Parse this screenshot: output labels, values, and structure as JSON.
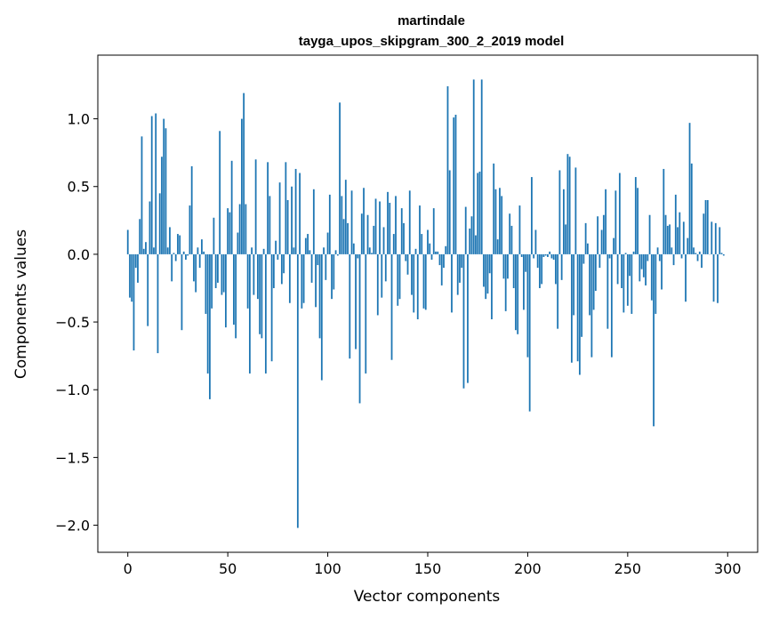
{
  "chart_data": {
    "type": "bar",
    "title": "martindale",
    "subtitle": "tayga_upos_skipgram_300_2_2019 model",
    "xlabel": "Vector components",
    "ylabel": "Components values",
    "xlim": [
      -15,
      315
    ],
    "ylim": [
      -2.2,
      1.47
    ],
    "xticks": [
      0,
      50,
      100,
      150,
      200,
      250,
      300
    ],
    "yticks": [
      -2.0,
      -1.5,
      -1.0,
      -0.5,
      0.0,
      0.5,
      1.0
    ],
    "xtick_labels": [
      "0",
      "50",
      "100",
      "150",
      "200",
      "250",
      "300"
    ],
    "ytick_labels": [
      "−2.0",
      "−1.5",
      "−1.0",
      "−0.5",
      "0.0",
      "0.5",
      "1.0"
    ],
    "grid": false,
    "bar_color": "#1f77b4",
    "x_start": 0,
    "values": [
      0.18,
      -0.32,
      -0.35,
      -0.71,
      -0.1,
      -0.21,
      0.26,
      0.87,
      0.04,
      0.09,
      -0.53,
      0.39,
      1.02,
      0.05,
      1.04,
      -0.73,
      0.45,
      0.72,
      1.0,
      0.93,
      0.05,
      0.2,
      -0.2,
      0.01,
      -0.05,
      0.15,
      0.14,
      -0.56,
      0.02,
      -0.04,
      -0.01,
      0.36,
      0.65,
      -0.2,
      -0.28,
      0.05,
      -0.1,
      0.11,
      0.02,
      -0.44,
      -0.88,
      -1.07,
      -0.4,
      0.27,
      -0.25,
      -0.21,
      0.91,
      -0.3,
      -0.28,
      -0.54,
      0.34,
      0.31,
      0.69,
      -0.52,
      -0.62,
      0.16,
      0.37,
      1.0,
      1.19,
      0.37,
      -0.4,
      -0.88,
      0.05,
      -0.3,
      0.7,
      -0.33,
      -0.59,
      -0.62,
      0.04,
      -0.88,
      0.68,
      0.43,
      -0.79,
      -0.25,
      0.1,
      -0.04,
      0.53,
      -0.22,
      -0.14,
      0.68,
      0.4,
      -0.36,
      0.5,
      0.05,
      0.63,
      -2.02,
      0.6,
      -0.4,
      -0.36,
      0.12,
      0.15,
      0.03,
      -0.21,
      0.48,
      -0.39,
      -0.08,
      -0.62,
      -0.93,
      0.05,
      -0.19,
      0.16,
      0.44,
      -0.33,
      -0.26,
      0.03,
      -0.01,
      1.12,
      0.43,
      0.26,
      0.55,
      0.23,
      -0.77,
      0.47,
      0.08,
      -0.7,
      -0.03,
      -1.1,
      0.3,
      0.49,
      -0.88,
      0.29,
      0.05,
      0.01,
      0.21,
      0.41,
      -0.45,
      0.39,
      -0.32,
      0.2,
      -0.2,
      0.46,
      0.38,
      -0.78,
      0.15,
      0.43,
      -0.38,
      -0.33,
      0.34,
      0.23,
      -0.05,
      -0.15,
      0.47,
      -0.3,
      -0.43,
      0.04,
      -0.48,
      0.36,
      0.15,
      -0.4,
      -0.41,
      0.18,
      0.08,
      -0.04,
      0.34,
      0.02,
      0.02,
      -0.08,
      -0.23,
      -0.1,
      0.06,
      1.24,
      0.62,
      -0.43,
      1.01,
      1.03,
      -0.3,
      -0.21,
      -0.1,
      -0.99,
      0.35,
      -0.95,
      0.19,
      0.28,
      1.29,
      0.14,
      0.6,
      0.61,
      1.29,
      -0.24,
      -0.33,
      -0.29,
      -0.14,
      -0.48,
      0.67,
      0.48,
      0.11,
      0.49,
      0.43,
      -0.18,
      -0.42,
      -0.18,
      0.3,
      0.21,
      -0.25,
      -0.56,
      -0.59,
      0.36,
      -0.02,
      -0.41,
      -0.13,
      -0.76,
      -1.16,
      0.57,
      -0.03,
      0.18,
      -0.1,
      -0.25,
      -0.22,
      -0.02,
      -0.01,
      -0.02,
      0.02,
      -0.03,
      -0.04,
      -0.22,
      -0.55,
      0.62,
      -0.19,
      0.48,
      0.22,
      0.74,
      0.72,
      -0.8,
      -0.45,
      0.64,
      -0.79,
      -0.89,
      -0.61,
      -0.07,
      0.23,
      0.08,
      -0.45,
      -0.76,
      -0.41,
      -0.27,
      0.28,
      -0.1,
      0.18,
      0.29,
      0.48,
      -0.55,
      -0.03,
      -0.76,
      0.12,
      0.47,
      -0.22,
      0.6,
      -0.25,
      -0.43,
      0.01,
      -0.38,
      -0.16,
      -0.44,
      0.02,
      0.57,
      0.49,
      -0.2,
      -0.11,
      -0.17,
      -0.23,
      -0.05,
      0.29,
      -0.34,
      -1.27,
      -0.44,
      0.05,
      -0.05,
      -0.26,
      0.63,
      0.29,
      0.21,
      0.22,
      0.05,
      -0.08,
      0.44,
      0.2,
      0.31,
      -0.03,
      0.24,
      -0.35,
      0.12,
      0.97,
      0.67,
      0.05,
      0.01,
      -0.05,
      0.02,
      -0.1,
      0.3,
      0.4,
      0.4,
      0.0,
      0.24,
      -0.35,
      0.23,
      -0.36,
      0.2,
      0.01,
      -0.01
    ]
  }
}
